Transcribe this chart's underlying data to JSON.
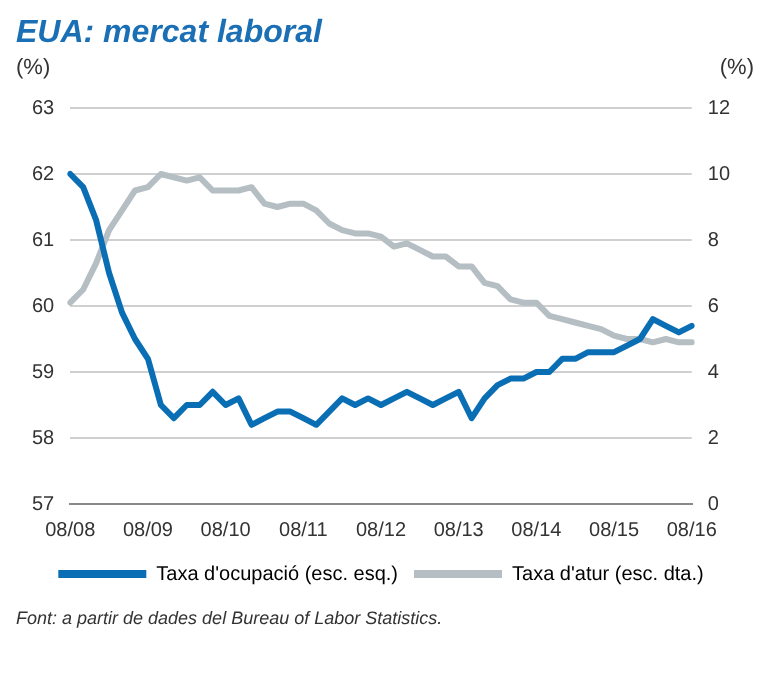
{
  "chart_data": {
    "type": "line",
    "title": "EUA: mercat laboral",
    "ylabel": "(%)",
    "y2label": "(%)",
    "annotations": [
      "Font: a partir de dades del Bureau of Labor Statistics."
    ],
    "categories": [
      "08/08",
      null,
      null,
      null,
      null,
      null,
      "08/09",
      null,
      null,
      null,
      null,
      null,
      "08/10",
      null,
      null,
      null,
      null,
      null,
      "08/11",
      null,
      null,
      null,
      null,
      null,
      "08/12",
      null,
      null,
      null,
      null,
      null,
      "08/13",
      null,
      null,
      null,
      null,
      null,
      "08/14",
      null,
      null,
      null,
      null,
      null,
      "08/15",
      null,
      null,
      null,
      null,
      null,
      "08/16"
    ],
    "series": [
      {
        "name": "Taxa d'ocupació (esc. esq.)",
        "color": "#0a6eb4",
        "values": [
          62.0,
          61.8,
          61.3,
          60.5,
          59.9,
          59.5,
          59.2,
          58.5,
          58.3,
          58.5,
          58.5,
          58.7,
          58.5,
          58.6,
          58.2,
          58.3,
          58.4,
          58.4,
          58.3,
          58.2,
          58.4,
          58.6,
          58.5,
          58.6,
          58.5,
          58.6,
          58.7,
          58.6,
          58.5,
          58.6,
          58.7,
          58.3,
          58.6,
          58.8,
          58.9,
          58.9,
          59.0,
          59.0,
          59.2,
          59.2,
          59.3,
          59.3,
          59.3,
          59.4,
          59.5,
          59.8,
          59.7,
          59.6,
          59.7
        ]
      },
      {
        "name": "Taxa d'atur (esc. dta.)",
        "color": "#b4bec3",
        "axis": "y2",
        "values": [
          6.1,
          6.5,
          7.3,
          8.3,
          8.9,
          9.5,
          9.6,
          10.0,
          9.9,
          9.8,
          9.9,
          9.5,
          9.5,
          9.5,
          9.6,
          9.1,
          9.0,
          9.1,
          9.1,
          8.9,
          8.5,
          8.3,
          8.2,
          8.2,
          8.1,
          7.8,
          7.9,
          7.7,
          7.5,
          7.5,
          7.2,
          7.2,
          6.7,
          6.6,
          6.2,
          6.1,
          6.1,
          5.7,
          5.6,
          5.5,
          5.4,
          5.3,
          5.1,
          5.0,
          5.0,
          4.9,
          5.0,
          4.9,
          4.9
        ]
      }
    ],
    "ylim": [
      57,
      63
    ],
    "yticks": [
      57,
      58,
      59,
      60,
      61,
      62,
      63
    ],
    "y2lim": [
      0,
      12
    ],
    "y2ticks": [
      0,
      2,
      4,
      6,
      8,
      10,
      12
    ],
    "grid": "y",
    "legend": "bottom",
    "marker": "none",
    "line_style": "solid"
  }
}
